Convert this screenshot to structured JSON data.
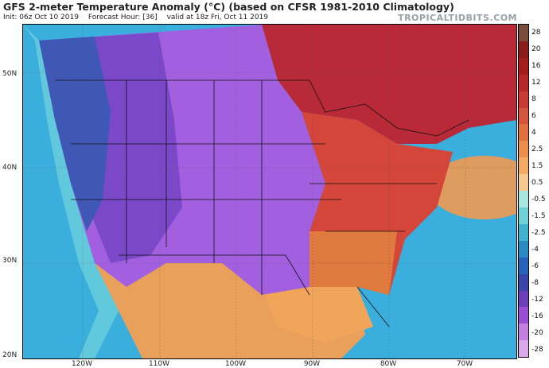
{
  "header": {
    "title": "GFS 2-meter Temperature Anomaly (°C) (based on CFSR 1981-2010 Climatology)",
    "init": "Init: 06z Oct 10 2019",
    "forecast_hour": "Forecast Hour: [36]",
    "valid": "valid at 18z Fri, Oct 11 2019",
    "brand": "TROPICALTIDBITS.COM"
  },
  "axes": {
    "lat_labels": [
      "50N",
      "40N",
      "30N",
      "20N"
    ],
    "lon_labels": [
      "120W",
      "110W",
      "100W",
      "90W",
      "80W",
      "70W"
    ]
  },
  "colorbar": {
    "labels": [
      "28",
      "20",
      "16",
      "12",
      "8",
      "6",
      "4",
      "2.5",
      "1.5",
      "0.5",
      "-0.5",
      "-1.5",
      "-2.5",
      "-4",
      "-6",
      "-8",
      "-12",
      "-16",
      "-20",
      "-28"
    ],
    "colors": [
      "#7a4a3a",
      "#8b1a1a",
      "#a51c1c",
      "#b8252a",
      "#c83a34",
      "#d5553a",
      "#e07040",
      "#eb8f4d",
      "#f2aa62",
      "#f7c98f",
      "#a8e6e2",
      "#6fd1d6",
      "#3fb3d0",
      "#2a8bc4",
      "#2563b8",
      "#3b45a8",
      "#6a3fb8",
      "#9a4fd2",
      "#c27fe0",
      "#d9a9ec"
    ]
  },
  "map": {
    "colors": {
      "ocean": "#3aaedc",
      "gulf_warm": "#f0a55a",
      "west_cold": "#3f57b5",
      "rockies_cold": "#7a48c8",
      "plains_cold": "#a25fe0",
      "east_warm": "#d4463a",
      "south_warm": "#e07a3e",
      "canada_hot": "#b82a38",
      "atlantic_warm": "#f29a52",
      "mexico": "#e8a05a",
      "coast_cool": "#62c9dc"
    }
  }
}
